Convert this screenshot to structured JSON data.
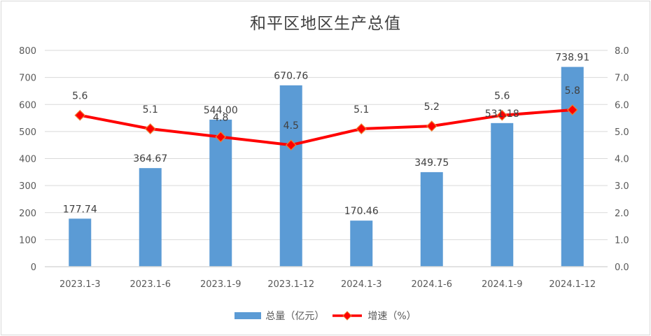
{
  "chart_data": {
    "type": "bar+line",
    "title": "和平区地区生产总值",
    "categories": [
      "2023.1-3",
      "2023.1-6",
      "2023.1-9",
      "2023.1-12",
      "2024.1-3",
      "2024.1-6",
      "2024.1-9",
      "2024.1-12"
    ],
    "series": [
      {
        "name": "总量（亿元）",
        "type": "bar",
        "axis": "left",
        "color": "#5b9bd5",
        "values": [
          177.74,
          364.67,
          544.0,
          670.76,
          170.46,
          349.75,
          531.18,
          738.91
        ],
        "labels": [
          "177.74",
          "364.67",
          "544.00",
          "670.76",
          "170.46",
          "349.75",
          "531.18",
          "738.91"
        ]
      },
      {
        "name": "增速（%）",
        "type": "line",
        "axis": "right",
        "color": "#ff0000",
        "marker": "diamond",
        "values": [
          5.6,
          5.1,
          4.8,
          4.5,
          5.1,
          5.2,
          5.6,
          5.8
        ],
        "labels": [
          "5.6",
          "5.1",
          "4.8",
          "4.5",
          "5.1",
          "5.2",
          "5.6",
          "5.8"
        ]
      }
    ],
    "y_left": {
      "min": 0,
      "max": 800,
      "step": 100,
      "ticks": [
        "0",
        "100",
        "200",
        "300",
        "400",
        "500",
        "600",
        "700",
        "800"
      ]
    },
    "y_right": {
      "min": 0,
      "max": 8,
      "step": 1,
      "ticks": [
        "0.0",
        "1.0",
        "2.0",
        "3.0",
        "4.0",
        "5.0",
        "6.0",
        "7.0",
        "8.0"
      ]
    },
    "grid": true,
    "legend_position": "bottom"
  },
  "legend": {
    "bar_label": "总量（亿元）",
    "line_label": "增速（%）"
  }
}
